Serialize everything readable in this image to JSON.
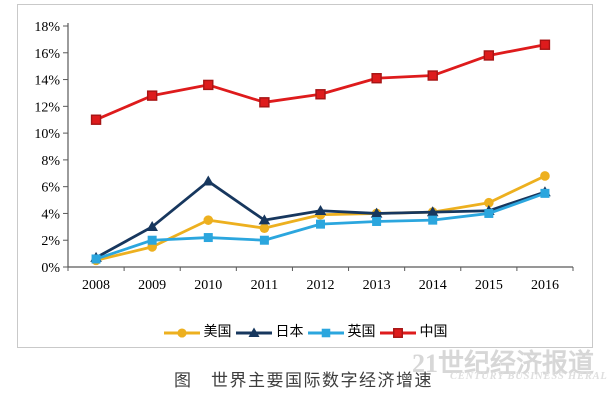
{
  "caption": "图　世界主要国际数字经济增速",
  "watermark": {
    "cn": "21世纪经济报道",
    "en": "CENTURY BUSINESS HERALD"
  },
  "axis_color": "#595959",
  "chart_data": {
    "type": "line",
    "title": "世界主要国际数字经济增速",
    "xlabel": "",
    "ylabel": "",
    "categories": [
      "2008",
      "2009",
      "2010",
      "2011",
      "2012",
      "2013",
      "2014",
      "2015",
      "2016"
    ],
    "yticks": [
      "0%",
      "2%",
      "4%",
      "6%",
      "8%",
      "10%",
      "12%",
      "14%",
      "16%",
      "18%"
    ],
    "ylim": [
      0,
      18
    ],
    "ytick_step": 2,
    "ytick_suffix": "%",
    "grid": false,
    "legend_position": "bottom",
    "series": [
      {
        "name": "美国",
        "color": "#EDB01F",
        "marker": "circle",
        "values": [
          0.5,
          1.5,
          3.5,
          2.9,
          3.9,
          4.0,
          4.1,
          4.8,
          6.8
        ]
      },
      {
        "name": "日本",
        "color": "#17375E",
        "marker": "triangle",
        "values": [
          0.7,
          3.0,
          6.4,
          3.5,
          4.2,
          4.0,
          4.1,
          4.2,
          5.6
        ]
      },
      {
        "name": "英国",
        "color": "#2BA6DE",
        "marker": "square",
        "values": [
          0.6,
          2.0,
          2.2,
          2.0,
          3.2,
          3.4,
          3.5,
          4.0,
          5.5
        ]
      },
      {
        "name": "中国",
        "color": "#DE1B1C",
        "marker": "square",
        "marker_border": "#A61414",
        "values": [
          11.0,
          12.8,
          13.6,
          12.3,
          12.9,
          14.1,
          14.3,
          15.8,
          16.6
        ]
      }
    ]
  }
}
